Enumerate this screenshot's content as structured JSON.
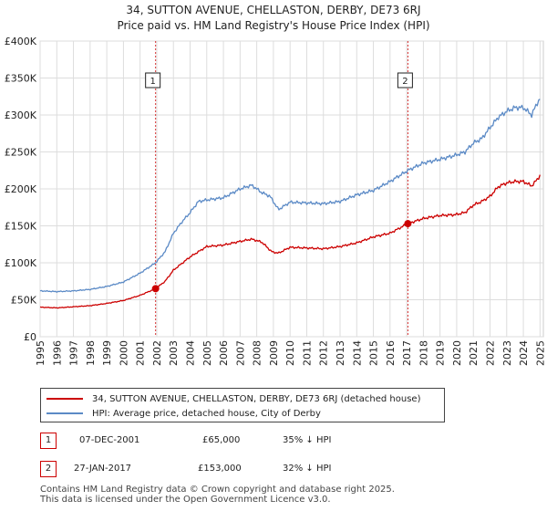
{
  "title": {
    "line1": "34, SUTTON AVENUE, CHELLASTON, DERBY, DE73 6RJ",
    "line2": "Price paid vs. HM Land Registry's House Price Index (HPI)"
  },
  "colors": {
    "price_line": "#cc0000",
    "hpi_line": "#5b8ac6",
    "grid": "#dddddd",
    "marker_line": "#cc0000"
  },
  "legend": {
    "price_label": "34, SUTTON AVENUE, CHELLASTON, DERBY, DE73 6RJ (detached house)",
    "hpi_label": "HPI: Average price, detached house, City of Derby"
  },
  "sales": [
    {
      "num": "1",
      "date": "07-DEC-2001",
      "price": "£65,000",
      "hpi_diff": "35% ↓ HPI"
    },
    {
      "num": "2",
      "date": "27-JAN-2017",
      "price": "£153,000",
      "hpi_diff": "32% ↓ HPI"
    }
  ],
  "footer": {
    "line1": "Contains HM Land Registry data © Crown copyright and database right 2025.",
    "line2": "This data is licensed under the Open Government Licence v3.0."
  },
  "chart_data": {
    "type": "line",
    "title": "34, SUTTON AVENUE, CHELLASTON, DERBY, DE73 6RJ",
    "subtitle": "Price paid vs. HM Land Registry's House Price Index (HPI)",
    "xlabel": "",
    "ylabel": "",
    "xlim": [
      1995,
      2025.2
    ],
    "ylim": [
      0,
      400000
    ],
    "grid": true,
    "y_ticks": [
      {
        "value": 0,
        "label": "£0"
      },
      {
        "value": 50000,
        "label": "£50K"
      },
      {
        "value": 100000,
        "label": "£100K"
      },
      {
        "value": 150000,
        "label": "£150K"
      },
      {
        "value": 200000,
        "label": "£200K"
      },
      {
        "value": 250000,
        "label": "£250K"
      },
      {
        "value": 300000,
        "label": "£300K"
      },
      {
        "value": 350000,
        "label": "£350K"
      },
      {
        "value": 400000,
        "label": "£400K"
      }
    ],
    "x_ticks": [
      "1995",
      "1996",
      "1997",
      "1998",
      "1999",
      "2000",
      "2001",
      "2002",
      "2003",
      "2004",
      "2005",
      "2006",
      "2007",
      "2008",
      "2009",
      "2010",
      "2011",
      "2012",
      "2013",
      "2014",
      "2015",
      "2016",
      "2017",
      "2018",
      "2019",
      "2020",
      "2021",
      "2022",
      "2023",
      "2024",
      "2025"
    ],
    "series": [
      {
        "name": "34, SUTTON AVENUE, CHELLASTON, DERBY, DE73 6RJ (detached house)",
        "x": [
          1995,
          1996,
          1997,
          1998,
          1999,
          2000,
          2001,
          2001.93,
          2002.5,
          2003,
          2004,
          2005,
          2006,
          2007,
          2007.7,
          2008.3,
          2008.9,
          2009.3,
          2010,
          2011,
          2012,
          2013,
          2014,
          2015,
          2016,
          2017.07,
          2018,
          2019,
          2019.9,
          2020.5,
          2021,
          2021.5,
          2022,
          2022.5,
          2023,
          2023.5,
          2024,
          2024.5,
          2024.8,
          2025
        ],
        "values": [
          40000,
          39000,
          40500,
          42000,
          45000,
          49000,
          56000,
          65000,
          75000,
          90000,
          108000,
          122000,
          124000,
          129000,
          132000,
          128000,
          115000,
          113000,
          121000,
          120000,
          119000,
          122000,
          127000,
          135000,
          140000,
          153000,
          160000,
          164000,
          165000,
          168000,
          178000,
          183000,
          190000,
          203000,
          208000,
          210000,
          210000,
          204000,
          212000,
          218000
        ]
      },
      {
        "name": "HPI: Average price, detached house, City of Derby",
        "x": [
          1995,
          1996,
          1997,
          1998,
          1999,
          2000,
          2001,
          2001.93,
          2002.5,
          2003,
          2003.5,
          2004,
          2004.5,
          2005,
          2006,
          2007,
          2007.7,
          2008.3,
          2008.8,
          2009.3,
          2010,
          2011,
          2012,
          2013,
          2014,
          2015,
          2016,
          2017.07,
          2018,
          2019,
          2020,
          2020.5,
          2021,
          2021.5,
          2022,
          2022.5,
          2023,
          2023.5,
          2024,
          2024.5,
          2024.8,
          2025
        ],
        "values": [
          62000,
          61000,
          62000,
          64000,
          68000,
          74000,
          86000,
          100000,
          115000,
          140000,
          155000,
          168000,
          183000,
          185000,
          188000,
          200000,
          205000,
          195000,
          190000,
          172000,
          182000,
          181000,
          180000,
          183000,
          192000,
          198000,
          210000,
          225000,
          235000,
          240000,
          246000,
          250000,
          262000,
          268000,
          283000,
          297000,
          305000,
          310000,
          310000,
          300000,
          315000,
          322000
        ]
      }
    ],
    "annotations": [
      {
        "label": "1",
        "x": 2001.93,
        "y": 65000,
        "series": 0
      },
      {
        "label": "2",
        "x": 2017.07,
        "y": 153000,
        "series": 0
      }
    ]
  }
}
